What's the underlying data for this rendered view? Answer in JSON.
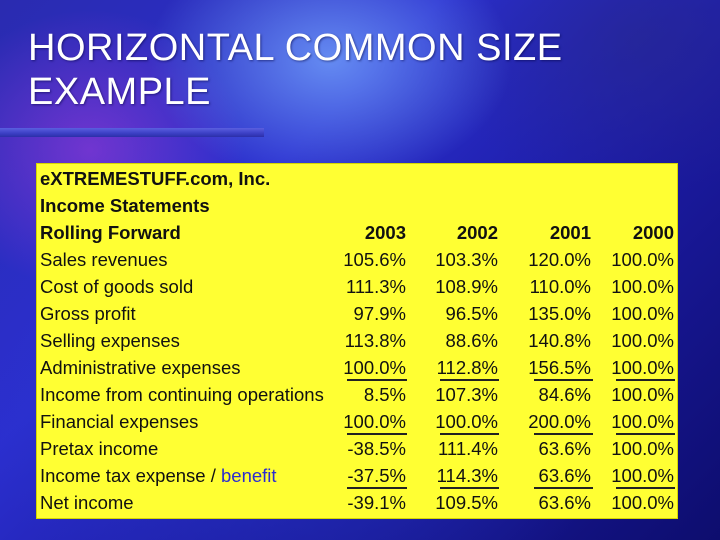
{
  "slide": {
    "title_line1": "HORIZONTAL COMMON SIZE",
    "title_line2": "EXAMPLE"
  },
  "table": {
    "company": "eXTREMESTUFF.com, Inc.",
    "statement": "Income Statements",
    "basis": "Rolling Forward",
    "years": [
      "2003",
      "2002",
      "2001",
      "2000"
    ],
    "rows": [
      {
        "label": "Sales revenues",
        "values": [
          "105.6%",
          "103.3%",
          "120.0%",
          "100.0%"
        ]
      },
      {
        "label": "Cost of goods sold",
        "values": [
          "111.3%",
          "108.9%",
          "110.0%",
          "100.0%"
        ]
      },
      {
        "label": "Gross profit",
        "values": [
          "97.9%",
          "96.5%",
          "135.0%",
          "100.0%"
        ]
      },
      {
        "label": "Selling expenses",
        "values": [
          "113.8%",
          "88.6%",
          "140.8%",
          "100.0%"
        ]
      },
      {
        "label": "Administrative expenses",
        "values": [
          "100.0%",
          "112.8%",
          "156.5%",
          "100.0%"
        ]
      },
      {
        "label": "Income from continuing operations",
        "values": [
          "8.5%",
          "107.3%",
          "84.6%",
          "100.0%"
        ]
      },
      {
        "label": "Financial expenses",
        "values": [
          "100.0%",
          "100.0%",
          "200.0%",
          "100.0%"
        ]
      },
      {
        "label": "Pretax income",
        "values": [
          "-38.5%",
          "111.4%",
          "63.6%",
          "100.0%"
        ]
      },
      {
        "label_part1": "Income tax expense / ",
        "label_part2": "benefit",
        "values": [
          "-37.5%",
          "114.3%",
          "63.6%",
          "100.0%"
        ]
      },
      {
        "label": "Net income",
        "values": [
          "-39.1%",
          "109.5%",
          "63.6%",
          "100.0%"
        ]
      }
    ]
  }
}
